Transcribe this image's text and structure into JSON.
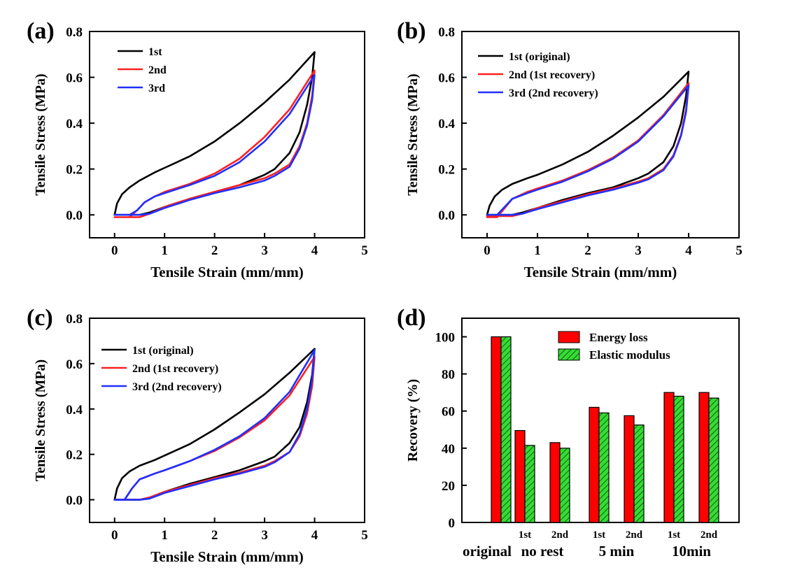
{
  "chart_data": [
    {
      "panel_label": "(a)",
      "type": "line",
      "xlabel": "Tensile Strain (mm/mm)",
      "ylabel": "Tensile Stress (MPa)",
      "xlim": [
        -0.5,
        5
      ],
      "ylim": [
        -0.1,
        0.8
      ],
      "xticks": [
        "0",
        "1",
        "2",
        "3",
        "4",
        "5"
      ],
      "yticks": [
        "0.0",
        "0.2",
        "0.4",
        "0.6",
        "0.8"
      ],
      "legend": "top-left",
      "series": [
        {
          "name": "1st",
          "color": "#000000",
          "x": [
            0,
            0.05,
            0.15,
            0.3,
            0.5,
            0.8,
            1.0,
            1.5,
            2.0,
            2.5,
            3.0,
            3.5,
            4.0,
            3.95,
            3.85,
            3.7,
            3.5,
            3.2,
            3.0,
            2.5,
            2.0,
            1.5,
            1.0,
            0.7,
            0.5,
            0.3,
            0.0
          ],
          "y": [
            0.0,
            0.05,
            0.09,
            0.12,
            0.15,
            0.185,
            0.205,
            0.255,
            0.32,
            0.4,
            0.49,
            0.59,
            0.71,
            0.6,
            0.48,
            0.36,
            0.27,
            0.2,
            0.175,
            0.13,
            0.1,
            0.07,
            0.035,
            0.01,
            0.0,
            0.0,
            0.0
          ]
        },
        {
          "name": "2nd",
          "color": "#ff2020",
          "x": [
            0,
            0.3,
            0.45,
            0.6,
            0.8,
            1.0,
            1.5,
            2.0,
            2.5,
            3.0,
            3.5,
            4.0,
            3.95,
            3.85,
            3.7,
            3.5,
            3.2,
            3.0,
            2.5,
            2.0,
            1.5,
            1.0,
            0.7,
            0.5,
            0.0
          ],
          "y": [
            -0.01,
            -0.01,
            0.02,
            0.055,
            0.08,
            0.1,
            0.135,
            0.18,
            0.245,
            0.34,
            0.46,
            0.63,
            0.52,
            0.4,
            0.3,
            0.22,
            0.18,
            0.16,
            0.13,
            0.1,
            0.07,
            0.035,
            0.005,
            -0.01,
            -0.01
          ]
        },
        {
          "name": "3rd",
          "color": "#2030ff",
          "x": [
            0,
            0.3,
            0.45,
            0.6,
            0.8,
            1.0,
            1.5,
            2.0,
            2.5,
            3.0,
            3.5,
            4.0,
            3.95,
            3.85,
            3.7,
            3.5,
            3.2,
            3.0,
            2.5,
            2.0,
            1.5,
            1.0,
            0.7,
            0.5,
            0.0
          ],
          "y": [
            0.0,
            0.0,
            0.02,
            0.055,
            0.08,
            0.095,
            0.13,
            0.17,
            0.23,
            0.32,
            0.44,
            0.61,
            0.5,
            0.39,
            0.29,
            0.21,
            0.17,
            0.15,
            0.12,
            0.095,
            0.065,
            0.03,
            0.005,
            0.0,
            0.0
          ]
        }
      ]
    },
    {
      "panel_label": "(b)",
      "type": "line",
      "xlabel": "Tensile Strain (mm/mm)",
      "ylabel": "Tensile Stress (MPa)",
      "xlim": [
        -0.5,
        5
      ],
      "ylim": [
        -0.1,
        0.8
      ],
      "xticks": [
        "0",
        "1",
        "2",
        "3",
        "4",
        "5"
      ],
      "yticks": [
        "0.0",
        "0.2",
        "0.4",
        "0.6",
        "0.8"
      ],
      "legend": "top-left",
      "series": [
        {
          "name": "1st (original)",
          "color": "#000000",
          "x": [
            0,
            0.05,
            0.15,
            0.3,
            0.5,
            0.8,
            1.0,
            1.5,
            2.0,
            2.5,
            3.0,
            3.5,
            4.0,
            3.95,
            3.85,
            3.7,
            3.5,
            3.2,
            3.0,
            2.5,
            2.0,
            1.5,
            1.0,
            0.7,
            0.5,
            0.3,
            0.0
          ],
          "y": [
            0.0,
            0.04,
            0.08,
            0.11,
            0.135,
            0.16,
            0.175,
            0.22,
            0.275,
            0.345,
            0.425,
            0.515,
            0.625,
            0.52,
            0.4,
            0.3,
            0.23,
            0.18,
            0.16,
            0.12,
            0.095,
            0.065,
            0.03,
            0.01,
            0.0,
            0.0,
            0.0
          ]
        },
        {
          "name": "2nd (1st recovery)",
          "color": "#ff2020",
          "x": [
            0,
            0.2,
            0.35,
            0.5,
            0.8,
            1.0,
            1.5,
            2.0,
            2.5,
            3.0,
            3.5,
            4.0,
            3.95,
            3.85,
            3.7,
            3.5,
            3.2,
            3.0,
            2.5,
            2.0,
            1.5,
            1.0,
            0.7,
            0.5,
            0.0
          ],
          "y": [
            -0.01,
            -0.01,
            0.03,
            0.07,
            0.1,
            0.115,
            0.15,
            0.195,
            0.25,
            0.325,
            0.435,
            0.575,
            0.46,
            0.35,
            0.26,
            0.2,
            0.16,
            0.145,
            0.115,
            0.09,
            0.06,
            0.03,
            0.005,
            -0.005,
            -0.005
          ]
        },
        {
          "name": "3rd (2nd recovery)",
          "color": "#2030ff",
          "x": [
            0,
            0.2,
            0.35,
            0.5,
            0.8,
            1.0,
            1.5,
            2.0,
            2.5,
            3.0,
            3.5,
            4.0,
            3.95,
            3.85,
            3.7,
            3.5,
            3.2,
            3.0,
            2.5,
            2.0,
            1.5,
            1.0,
            0.7,
            0.5,
            0.0
          ],
          "y": [
            0.0,
            0.0,
            0.035,
            0.07,
            0.095,
            0.11,
            0.145,
            0.19,
            0.245,
            0.32,
            0.43,
            0.565,
            0.45,
            0.345,
            0.255,
            0.195,
            0.155,
            0.14,
            0.11,
            0.085,
            0.055,
            0.025,
            0.005,
            0.0,
            0.0
          ]
        }
      ]
    },
    {
      "panel_label": "(c)",
      "type": "line",
      "xlabel": "Tensile Strain (mm/mm)",
      "ylabel": "Tensile Stress (MPa)",
      "xlim": [
        -0.5,
        5
      ],
      "ylim": [
        -0.1,
        0.8
      ],
      "xticks": [
        "0",
        "1",
        "2",
        "3",
        "4",
        "5"
      ],
      "yticks": [
        "0.0",
        "0.2",
        "0.4",
        "0.6",
        "0.8"
      ],
      "legend": "top-left",
      "series": [
        {
          "name": "1st (original)",
          "color": "#000000",
          "x": [
            0,
            0.05,
            0.15,
            0.3,
            0.5,
            0.8,
            1.0,
            1.5,
            2.0,
            2.5,
            3.0,
            3.5,
            4.0,
            3.95,
            3.85,
            3.7,
            3.5,
            3.2,
            3.0,
            2.5,
            2.0,
            1.5,
            1.0,
            0.7,
            0.5,
            0.3,
            0.0
          ],
          "y": [
            0.0,
            0.05,
            0.095,
            0.125,
            0.15,
            0.175,
            0.195,
            0.245,
            0.31,
            0.385,
            0.465,
            0.56,
            0.665,
            0.55,
            0.43,
            0.32,
            0.25,
            0.19,
            0.17,
            0.13,
            0.1,
            0.07,
            0.035,
            0.01,
            0.0,
            0.0,
            0.0
          ]
        },
        {
          "name": "2nd (1st recovery)",
          "color": "#ff2020",
          "x": [
            0,
            0.2,
            0.35,
            0.5,
            0.8,
            1.0,
            1.5,
            2.0,
            2.5,
            3.0,
            3.5,
            4.0,
            3.95,
            3.85,
            3.7,
            3.5,
            3.2,
            3.0,
            2.5,
            2.0,
            1.5,
            1.0,
            0.7,
            0.5,
            0.0
          ],
          "y": [
            0.0,
            0.0,
            0.05,
            0.09,
            0.115,
            0.13,
            0.17,
            0.215,
            0.275,
            0.35,
            0.46,
            0.63,
            0.5,
            0.38,
            0.28,
            0.21,
            0.17,
            0.15,
            0.12,
            0.095,
            0.065,
            0.035,
            0.01,
            0.0,
            0.0
          ]
        },
        {
          "name": "3rd (2nd recovery)",
          "color": "#2030ff",
          "x": [
            0,
            0.2,
            0.35,
            0.5,
            0.8,
            1.0,
            1.5,
            2.0,
            2.5,
            3.0,
            3.5,
            4.0,
            3.95,
            3.85,
            3.7,
            3.5,
            3.2,
            3.0,
            2.5,
            2.0,
            1.5,
            1.0,
            0.7,
            0.5,
            0.0
          ],
          "y": [
            0.0,
            0.0,
            0.05,
            0.09,
            0.115,
            0.13,
            0.17,
            0.22,
            0.28,
            0.36,
            0.475,
            0.66,
            0.53,
            0.4,
            0.29,
            0.21,
            0.165,
            0.145,
            0.115,
            0.09,
            0.06,
            0.03,
            0.005,
            0.0,
            0.0
          ]
        }
      ]
    },
    {
      "panel_label": "(d)",
      "type": "bar",
      "ylabel": "Recovery (%)",
      "ylim": [
        0,
        110
      ],
      "yticks": [
        "0",
        "20",
        "40",
        "60",
        "80",
        "100"
      ],
      "legend": "top-right",
      "groups": [
        {
          "label": "original",
          "subs": [
            ""
          ]
        },
        {
          "label": "no rest",
          "subs": [
            "1st",
            "2nd"
          ]
        },
        {
          "label": "5 min",
          "subs": [
            "1st",
            "2nd"
          ]
        },
        {
          "label": "10min",
          "subs": [
            "1st",
            "2nd"
          ]
        }
      ],
      "series": [
        {
          "name": "Energy loss",
          "color": "#ff0000",
          "hatch": false,
          "values": [
            100,
            49.5,
            43,
            62,
            57.5,
            70,
            70
          ]
        },
        {
          "name": "Elastic modulus",
          "color": "#33dd33",
          "hatch": true,
          "values": [
            100,
            41.5,
            40,
            59,
            52.5,
            68,
            67
          ]
        }
      ]
    }
  ]
}
